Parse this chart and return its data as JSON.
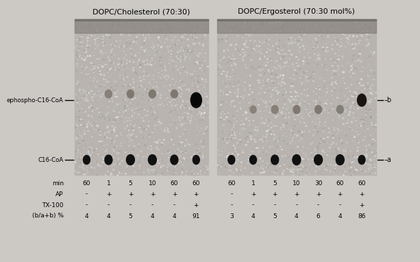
{
  "title_left": "DOPC/Cholesterol (70:30)",
  "title_right": "DOPC/Ergosterol (70:30 mol%)",
  "figure_bg": "#ccc9c5",
  "gel_bg_left": "#b8b4af",
  "gel_bg_right": "#b2aeaa",
  "label_ephospho": "ephospho-C16-CoA",
  "label_c16coa": "C16-CoA",
  "row_labels": [
    "min",
    "AP",
    "TX-100",
    "(b/a+b) %"
  ],
  "lp_min": [
    "60",
    "1",
    "5",
    "10",
    "60",
    "60"
  ],
  "lp_ap": [
    "-",
    "+",
    "+",
    "+",
    "+",
    "+"
  ],
  "lp_tx": [
    "-",
    "-",
    "-",
    "-",
    "-",
    "+"
  ],
  "lp_ba": [
    "4",
    "4",
    "5",
    "4",
    "4",
    "91"
  ],
  "rp_min": [
    "60",
    "1",
    "5",
    "10",
    "30",
    "60",
    "60"
  ],
  "rp_ap": [
    "-",
    "+",
    "+",
    "+",
    "+",
    "+",
    "+"
  ],
  "rp_tx": [
    "-",
    "-",
    "-",
    "-",
    "-",
    "-",
    "+"
  ],
  "rp_ba": [
    "3",
    "4",
    "5",
    "4",
    "6",
    "4",
    "86"
  ]
}
